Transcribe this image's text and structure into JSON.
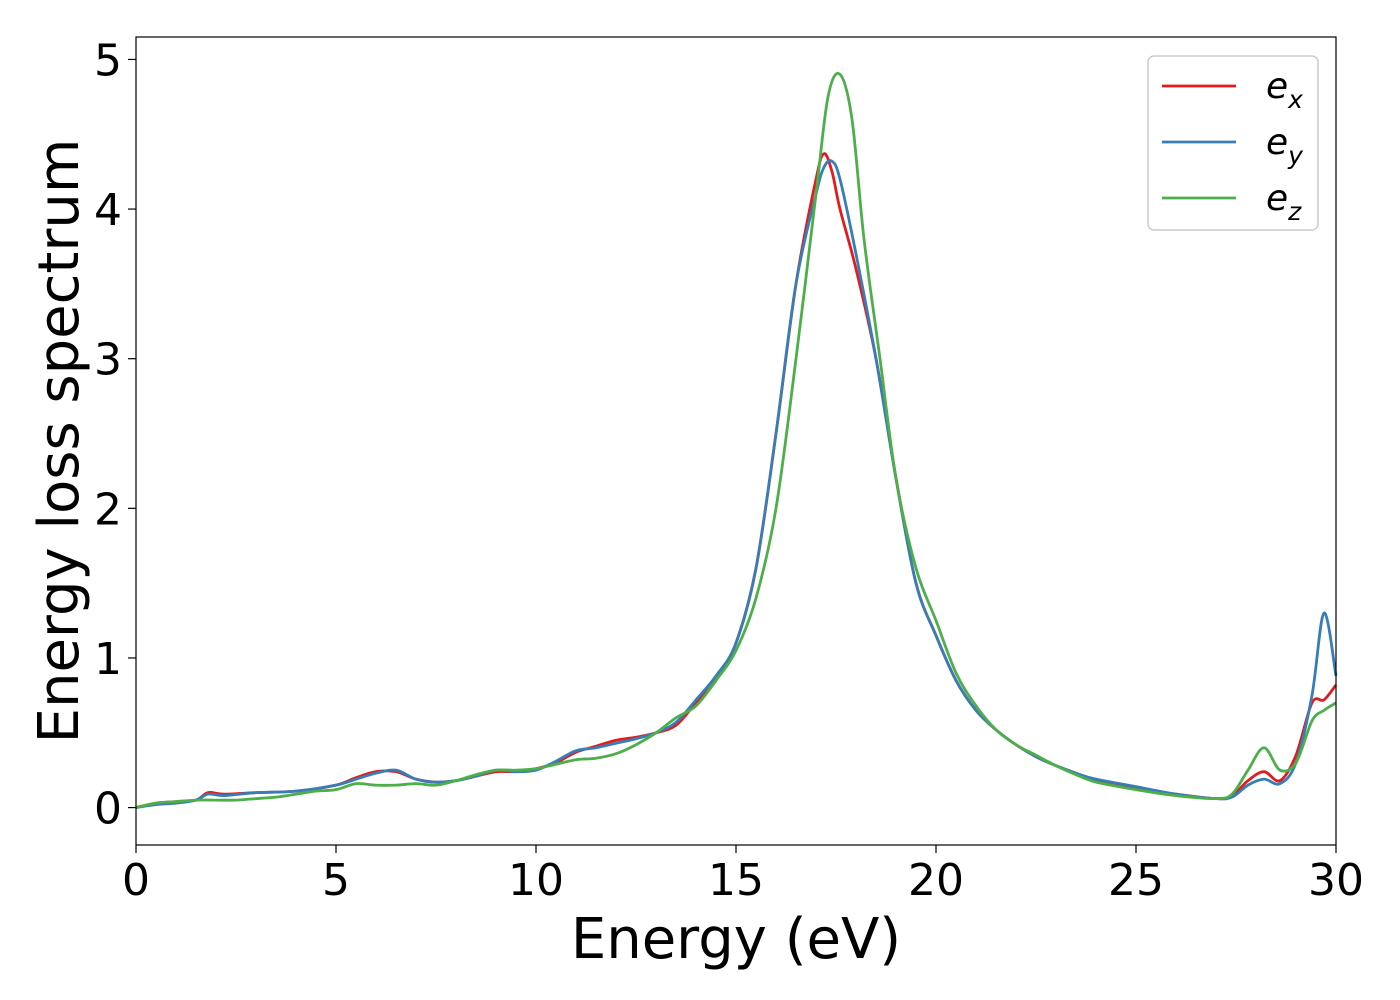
{
  "chart_data": {
    "type": "line",
    "title": "",
    "xlabel": "Energy (eV)",
    "ylabel": "Energy loss spectrum",
    "xlim": [
      0,
      30
    ],
    "ylim": [
      -0.25,
      5.15
    ],
    "xticks": [
      0,
      5,
      10,
      15,
      20,
      25,
      30
    ],
    "yticks": [
      0,
      1,
      2,
      3,
      4,
      5
    ],
    "grid": false,
    "legend_position": "top-right",
    "series": [
      {
        "name": "e",
        "subscript": "x",
        "color": "#e41a1c",
        "x": [
          0,
          0.5,
          1,
          1.5,
          1.8,
          2.2,
          3,
          4,
          5,
          5.5,
          6,
          6.5,
          7,
          7.5,
          8,
          8.5,
          9,
          9.5,
          10,
          10.5,
          11,
          11.5,
          12,
          12.5,
          13,
          13.5,
          14,
          14.5,
          15,
          15.5,
          16,
          16.5,
          17,
          17.2,
          17.4,
          17.6,
          18,
          18.5,
          19,
          19.5,
          20,
          20.5,
          21,
          21.5,
          22,
          22.5,
          23,
          23.5,
          24,
          25,
          26,
          27,
          27.4,
          27.8,
          28.2,
          28.6,
          29,
          29.4,
          29.7,
          30
        ],
        "y": [
          0,
          0.03,
          0.04,
          0.05,
          0.1,
          0.09,
          0.1,
          0.11,
          0.15,
          0.2,
          0.24,
          0.24,
          0.19,
          0.17,
          0.18,
          0.21,
          0.24,
          0.24,
          0.26,
          0.3,
          0.37,
          0.41,
          0.45,
          0.47,
          0.5,
          0.55,
          0.7,
          0.85,
          1.1,
          1.6,
          2.5,
          3.5,
          4.2,
          4.37,
          4.25,
          4.0,
          3.6,
          3.0,
          2.2,
          1.5,
          1.15,
          0.85,
          0.65,
          0.52,
          0.42,
          0.34,
          0.28,
          0.23,
          0.18,
          0.13,
          0.09,
          0.06,
          0.08,
          0.18,
          0.24,
          0.18,
          0.35,
          0.7,
          0.72,
          0.82
        ]
      },
      {
        "name": "e",
        "subscript": "y",
        "color": "#377eb8",
        "x": [
          0,
          0.5,
          1,
          1.5,
          1.8,
          2.2,
          3,
          4,
          5,
          5.5,
          6,
          6.5,
          7,
          7.5,
          8,
          8.5,
          9,
          9.5,
          10,
          10.5,
          11,
          11.5,
          12,
          12.5,
          13,
          13.5,
          14,
          14.5,
          15,
          15.5,
          16,
          16.5,
          17,
          17.2,
          17.4,
          17.6,
          18,
          18.5,
          19,
          19.5,
          20,
          20.5,
          21,
          21.5,
          22,
          22.5,
          23,
          23.5,
          24,
          25,
          26,
          27,
          27.4,
          27.8,
          28.2,
          28.6,
          29,
          29.4,
          29.7,
          30
        ],
        "y": [
          0,
          0.02,
          0.03,
          0.05,
          0.09,
          0.08,
          0.1,
          0.11,
          0.15,
          0.19,
          0.23,
          0.25,
          0.19,
          0.17,
          0.18,
          0.21,
          0.25,
          0.24,
          0.25,
          0.31,
          0.38,
          0.4,
          0.43,
          0.46,
          0.5,
          0.57,
          0.72,
          0.88,
          1.1,
          1.6,
          2.5,
          3.5,
          4.1,
          4.28,
          4.32,
          4.2,
          3.7,
          3.0,
          2.2,
          1.5,
          1.15,
          0.85,
          0.65,
          0.52,
          0.42,
          0.34,
          0.28,
          0.23,
          0.19,
          0.14,
          0.09,
          0.06,
          0.07,
          0.15,
          0.19,
          0.16,
          0.3,
          0.75,
          1.3,
          0.88
        ]
      },
      {
        "name": "e",
        "subscript": "z",
        "color": "#4daf4a",
        "x": [
          0,
          0.5,
          1,
          1.5,
          2,
          2.5,
          3,
          3.5,
          4,
          4.5,
          5,
          5.5,
          6,
          6.5,
          7,
          7.5,
          8,
          8.5,
          9,
          9.5,
          10,
          10.5,
          11,
          11.5,
          12,
          12.5,
          13,
          13.5,
          14,
          14.5,
          15,
          15.5,
          16,
          16.5,
          17,
          17.3,
          17.6,
          17.9,
          18.2,
          18.6,
          19,
          19.5,
          20,
          20.5,
          21,
          21.5,
          22,
          22.5,
          23,
          23.5,
          24,
          25,
          26,
          27,
          27.4,
          27.8,
          28.2,
          28.6,
          29,
          29.4,
          29.7,
          30
        ],
        "y": [
          0,
          0.03,
          0.04,
          0.05,
          0.05,
          0.05,
          0.06,
          0.07,
          0.09,
          0.11,
          0.12,
          0.16,
          0.15,
          0.15,
          0.16,
          0.15,
          0.18,
          0.22,
          0.25,
          0.25,
          0.26,
          0.29,
          0.32,
          0.33,
          0.36,
          0.42,
          0.5,
          0.6,
          0.68,
          0.85,
          1.05,
          1.4,
          2.0,
          3.0,
          4.1,
          4.75,
          4.9,
          4.6,
          3.8,
          3.0,
          2.2,
          1.6,
          1.25,
          0.9,
          0.68,
          0.52,
          0.42,
          0.35,
          0.28,
          0.22,
          0.17,
          0.12,
          0.08,
          0.06,
          0.09,
          0.25,
          0.4,
          0.25,
          0.3,
          0.58,
          0.65,
          0.7
        ]
      }
    ]
  }
}
